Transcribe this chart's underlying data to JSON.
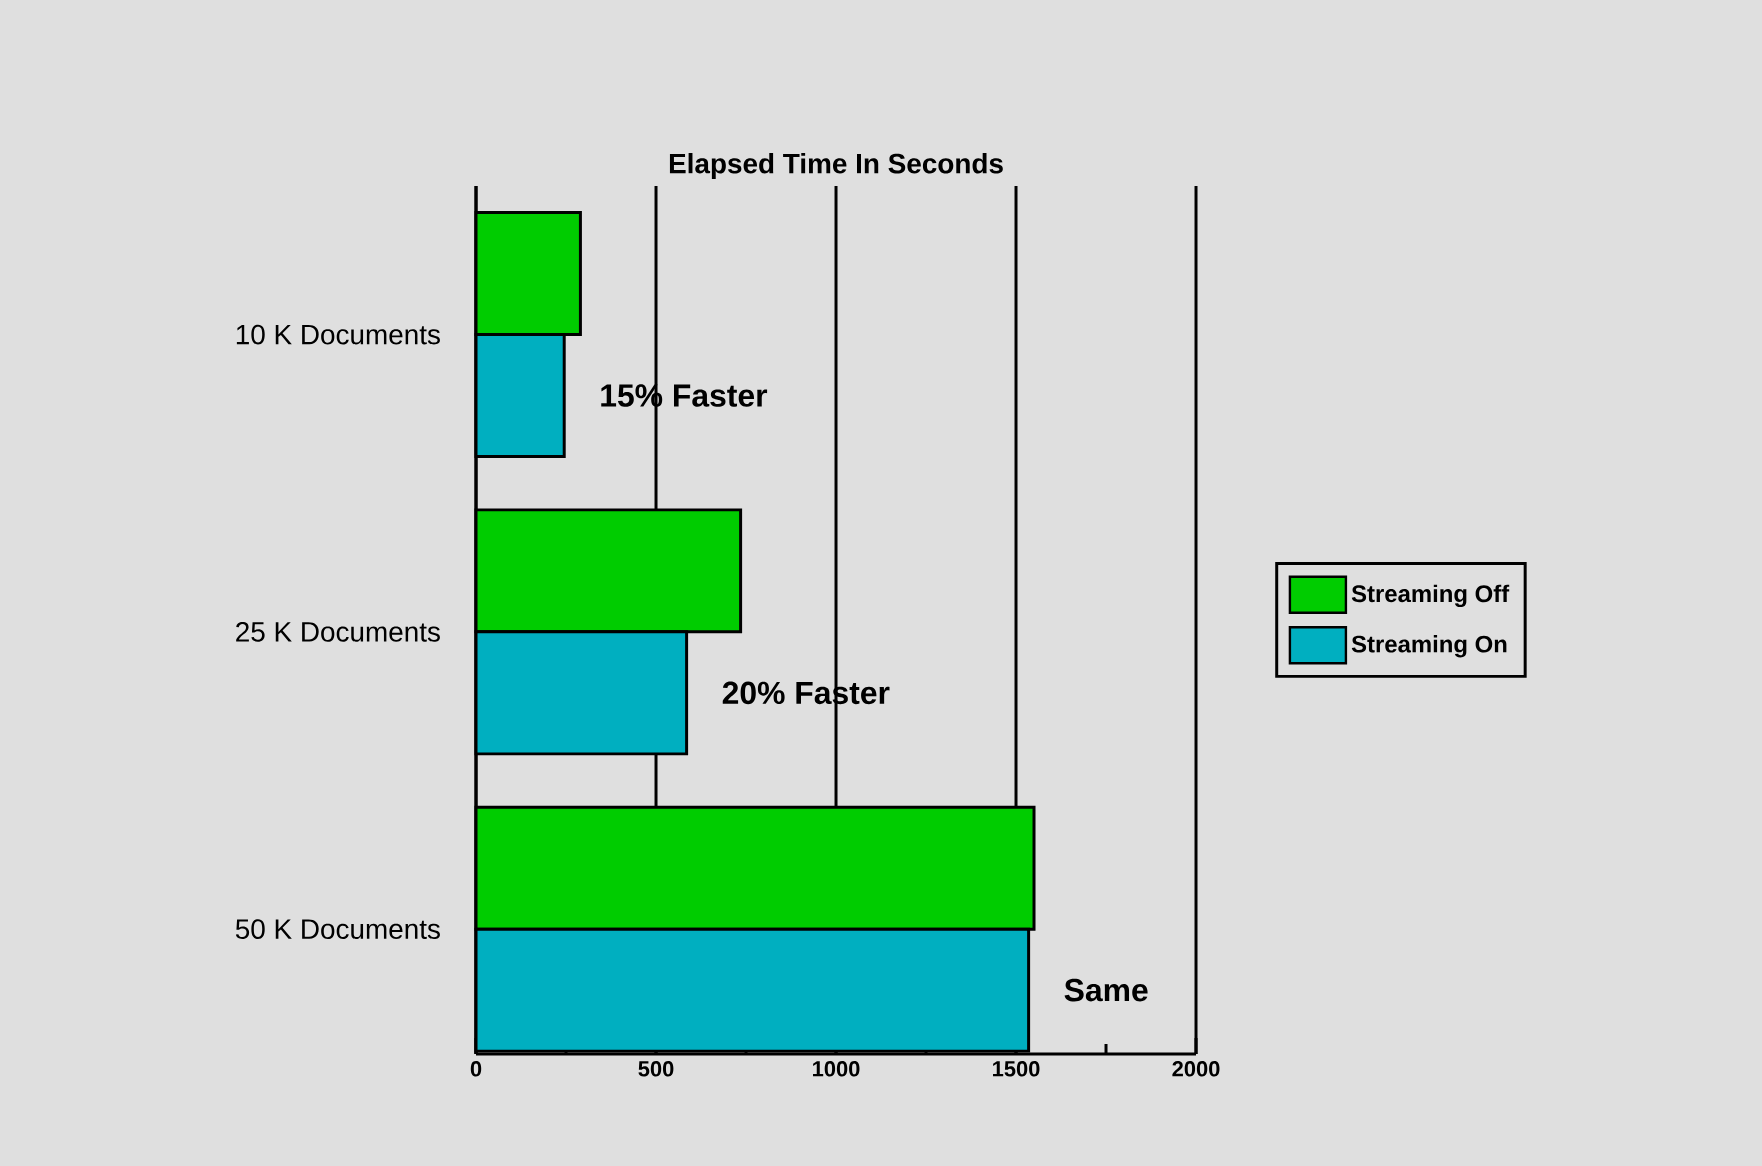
{
  "chart_data": {
    "type": "bar",
    "orientation": "horizontal",
    "title": "Elapsed Time In Seconds",
    "categories": [
      "10 K Documents",
      "25 K Documents",
      "50 K Documents"
    ],
    "series": [
      {
        "name": "Streaming Off",
        "color": "#00cc00",
        "values": [
          290,
          735,
          1550
        ]
      },
      {
        "name": "Streaming On",
        "color": "#00afc0",
        "values": [
          245,
          585,
          1535
        ]
      }
    ],
    "xlim": [
      0,
      2000
    ],
    "xticks": [
      0,
      {
        "value": 250,
        "label": null
      },
      500,
      {
        "value": 750,
        "label": null
      },
      1000,
      {
        "value": 1250,
        "label": null
      },
      1500,
      {
        "value": 1750,
        "label": null
      },
      2000
    ],
    "grid": "x",
    "legend": "right",
    "annotations": [
      "15% Faster",
      "20% Faster",
      "Same"
    ]
  }
}
